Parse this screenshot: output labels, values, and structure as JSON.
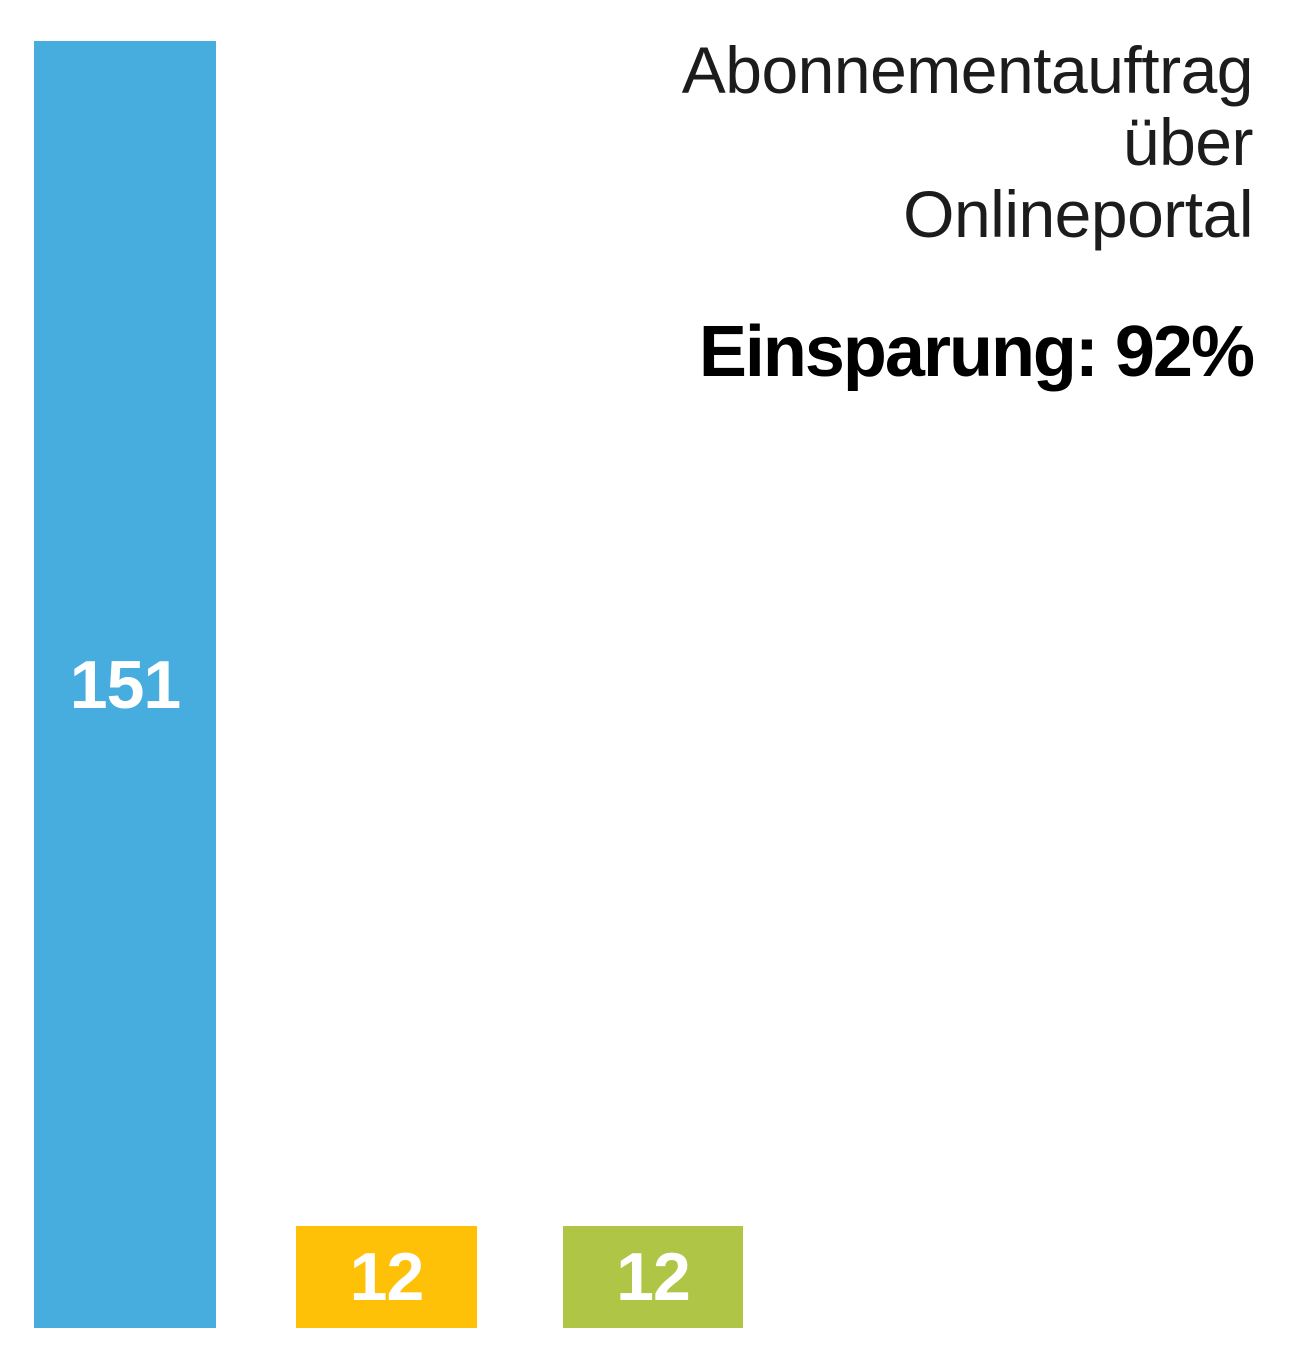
{
  "chart": {
    "title": "Abonnementauftrag\nüber\nOnlineportal",
    "annotation": "Einsparung: 92%",
    "bars": [
      {
        "label": "151",
        "value": 151,
        "color": "#47ADDE"
      },
      {
        "label": "12",
        "value": 12,
        "color": "#FFC107"
      },
      {
        "label": "12",
        "value": 12,
        "color": "#AFC545"
      }
    ],
    "background_color": "#FFFFFF",
    "title_color": "#1C1C1C",
    "annotation_color": "#000000",
    "bar_label_color": "#FFFFFF"
  },
  "chart_data": {
    "type": "bar",
    "orientation": "vertical",
    "categories": [
      "",
      "",
      ""
    ],
    "values": [
      151,
      12,
      12
    ],
    "data_labels": [
      "151",
      "12",
      "12"
    ],
    "bar_colors": [
      "#47ADDE",
      "#FFC107",
      "#AFC545"
    ],
    "title": "Abonnementauftrag über Onlineportal",
    "annotation": "Einsparung: 92%",
    "xlabel": "",
    "ylabel": "",
    "ylim": [
      0,
      151
    ],
    "grid": false,
    "axes": "hidden",
    "legend": "none"
  }
}
